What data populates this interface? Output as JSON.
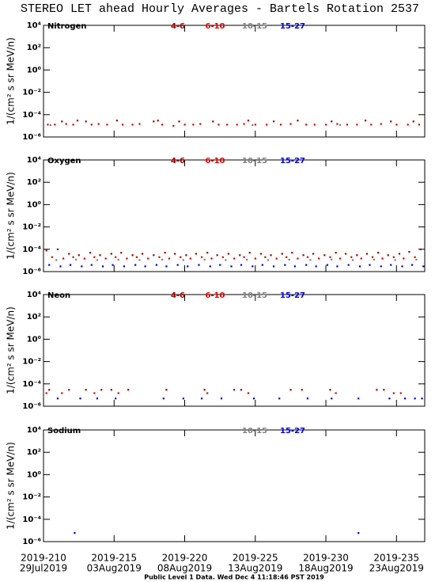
{
  "title": "STEREO LET ahead Hourly Averages - Bartels Rotation 2537",
  "footer": "Public Level 1 Data. Wed Dec  4 11:18:46 PST 2019",
  "chart_data": [
    {
      "type": "scatter",
      "title": "Nitrogen",
      "ylabel": "1/(cm² s sr MeV/n)",
      "log_y": true,
      "xlim": [
        210,
        237
      ],
      "ylim": [
        1e-06,
        10000
      ],
      "yticks": [
        {
          "value": 10000,
          "label": "10⁴"
        },
        {
          "value": 100,
          "label": "10²"
        },
        {
          "value": 1,
          "label": "10⁰"
        },
        {
          "value": 0.01,
          "label": "10⁻²"
        },
        {
          "value": 0.0001,
          "label": "10⁻⁴"
        },
        {
          "value": 1e-06,
          "label": "10⁻⁶"
        }
      ],
      "series": [
        {
          "name": "4-6",
          "color": "#a00000",
          "x": [
            211.3,
            212.4,
            213.0,
            215.2,
            217.8,
            218.1,
            219.6,
            222.0,
            224.5,
            226.3,
            228.0,
            230.4,
            232.8,
            234.6,
            236.2
          ],
          "values": [
            2.5e-05,
            3e-05,
            2.5e-05,
            3e-05,
            2.5e-05,
            3e-05,
            2.5e-05,
            2.5e-05,
            3e-05,
            2.5e-05,
            3e-05,
            2.5e-05,
            3e-05,
            2.5e-05,
            2.5e-05
          ]
        },
        {
          "name": "6-10",
          "color": "#e00000",
          "x": [
            210.3,
            210.8,
            211.6,
            212.1,
            213.4,
            213.9,
            214.5,
            215.6,
            216.3,
            216.8,
            218.4,
            219.2,
            220.0,
            220.6,
            221.1,
            222.4,
            223.0,
            223.7,
            224.2,
            225.0,
            225.8,
            226.8,
            227.5,
            228.6,
            229.2,
            230.0,
            230.8,
            231.5,
            232.2,
            233.2,
            233.9,
            235.0,
            235.8,
            236.6
          ],
          "values": [
            1.3e-05,
            1.3e-05,
            1.5e-05,
            1.3e-05,
            1.3e-05,
            1.5e-05,
            1.3e-05,
            1.3e-05,
            1.3e-05,
            1.5e-05,
            1.3e-05,
            1e-05,
            1.3e-05,
            1.3e-05,
            1.5e-05,
            1.3e-05,
            1.3e-05,
            1.3e-05,
            1.5e-05,
            1.3e-05,
            1.3e-05,
            1.3e-05,
            1.5e-05,
            1.3e-05,
            1.3e-05,
            1.3e-05,
            1.5e-05,
            1.3e-05,
            1.3e-05,
            1.3e-05,
            1.5e-05,
            1.3e-05,
            1.3e-05,
            1.3e-05
          ]
        },
        {
          "name": "10-15",
          "color": "#808080",
          "x": [
            210.5,
            224.8,
            231.0
          ],
          "values": [
            1.2e-05,
            1.2e-05,
            1.2e-05
          ]
        },
        {
          "name": "15-27",
          "color": "#0000e0",
          "x": [],
          "values": []
        }
      ]
    },
    {
      "type": "scatter",
      "title": "Oxygen",
      "ylabel": "1/(cm² s sr MeV/n)",
      "log_y": true,
      "xlim": [
        210,
        237
      ],
      "ylim": [
        1e-06,
        10000
      ],
      "yticks": [
        {
          "value": 10000,
          "label": "10⁴"
        },
        {
          "value": 100,
          "label": "10²"
        },
        {
          "value": 1,
          "label": "10⁰"
        },
        {
          "value": 0.01,
          "label": "10⁻²"
        },
        {
          "value": 0.0001,
          "label": "10⁻⁴"
        },
        {
          "value": 1e-06,
          "label": "10⁻⁶"
        }
      ],
      "series": [
        {
          "name": "4-6",
          "color": "#a00000",
          "x": [
            210.2,
            211.0,
            211.8,
            212.5,
            213.3,
            214.0,
            214.8,
            215.5,
            216.3,
            217.0,
            217.8,
            218.6,
            219.3,
            220.1,
            220.8,
            221.6,
            222.3,
            223.1,
            223.9,
            224.6,
            225.4,
            226.1,
            226.9,
            227.6,
            228.4,
            229.1,
            229.9,
            230.7,
            231.4,
            232.2,
            232.9,
            233.7,
            234.4,
            235.2,
            235.9,
            236.7
          ],
          "values": [
            8e-05,
            0.0001,
            4e-05,
            3e-05,
            5e-05,
            3e-05,
            4e-05,
            5e-05,
            3e-05,
            4e-05,
            3e-05,
            5e-05,
            4e-05,
            3e-05,
            4e-05,
            5e-05,
            3e-05,
            4e-05,
            3e-05,
            5e-05,
            4e-05,
            3e-05,
            4e-05,
            5e-05,
            3e-05,
            4e-05,
            3e-05,
            5e-05,
            4e-05,
            3e-05,
            4e-05,
            5e-05,
            3e-05,
            4e-05,
            6e-05,
            0.0001
          ]
        },
        {
          "name": "6-10",
          "color": "#e00000",
          "x": [
            210.6,
            211.4,
            212.1,
            212.9,
            213.6,
            214.4,
            215.1,
            215.9,
            216.6,
            217.4,
            218.2,
            218.9,
            219.7,
            220.4,
            221.2,
            221.9,
            222.7,
            223.5,
            224.2,
            225.0,
            225.7,
            226.5,
            227.2,
            228.0,
            228.7,
            229.5,
            230.3,
            231.0,
            231.8,
            232.5,
            233.3,
            234.0,
            234.8,
            235.5,
            236.3
          ],
          "values": [
            2e-05,
            1.5e-05,
            2e-05,
            1.5e-05,
            2e-05,
            1.5e-05,
            2e-05,
            1.5e-05,
            2e-05,
            1.5e-05,
            2e-05,
            1.5e-05,
            2e-05,
            1.5e-05,
            2e-05,
            1.5e-05,
            2e-05,
            1.5e-05,
            2e-05,
            1.5e-05,
            2e-05,
            1.5e-05,
            2e-05,
            1.5e-05,
            2e-05,
            1.5e-05,
            2e-05,
            1.5e-05,
            2e-05,
            1.5e-05,
            2e-05,
            1.5e-05,
            2e-05,
            1.5e-05,
            2e-05
          ]
        },
        {
          "name": "10-15",
          "color": "#808080",
          "x": [
            210.9,
            212.3,
            213.8,
            215.3,
            216.8,
            218.4,
            219.9,
            221.4,
            222.9,
            224.4,
            225.9,
            227.4,
            228.9,
            230.4,
            231.9,
            233.4,
            234.9,
            236.4
          ],
          "values": [
            1.1e-05,
            1.2e-05,
            1.1e-05,
            1.2e-05,
            1.1e-05,
            1.2e-05,
            1.1e-05,
            1.2e-05,
            1.1e-05,
            1.2e-05,
            1.1e-05,
            1.2e-05,
            1.1e-05,
            1.2e-05,
            1.1e-05,
            1.2e-05,
            1.1e-05,
            1.2e-05
          ]
        },
        {
          "name": "15-27",
          "color": "#0000e0",
          "x": [
            210.4,
            211.2,
            211.9,
            212.7,
            213.4,
            214.2,
            214.9,
            215.7,
            216.5,
            217.2,
            218.0,
            218.7,
            219.5,
            220.2,
            221.0,
            221.8,
            222.5,
            223.3,
            224.0,
            224.8,
            225.5,
            226.3,
            227.1,
            227.8,
            228.6,
            229.3,
            230.1,
            230.8,
            231.6,
            232.4,
            233.1,
            233.9,
            234.6,
            235.4,
            236.1,
            236.9
          ],
          "values": [
            4e-06,
            3e-06,
            4e-06,
            3e-06,
            4e-06,
            3e-06,
            4e-06,
            3e-06,
            4e-06,
            3e-06,
            4e-06,
            3e-06,
            4e-06,
            3e-06,
            4e-06,
            3e-06,
            4e-06,
            3e-06,
            4e-06,
            3e-06,
            4e-06,
            3e-06,
            4e-06,
            3e-06,
            4e-06,
            3e-06,
            4e-06,
            3e-06,
            4e-06,
            3e-06,
            4e-06,
            3e-06,
            4e-06,
            3e-06,
            4e-06,
            3e-06
          ]
        }
      ]
    },
    {
      "type": "scatter",
      "title": "Neon",
      "ylabel": "1/(cm² s sr MeV/n)",
      "log_y": true,
      "xlim": [
        210,
        237
      ],
      "ylim": [
        1e-06,
        10000
      ],
      "yticks": [
        {
          "value": 10000,
          "label": "10⁴"
        },
        {
          "value": 100,
          "label": "10²"
        },
        {
          "value": 1,
          "label": "10⁰"
        },
        {
          "value": 0.01,
          "label": "10⁻²"
        },
        {
          "value": 0.0001,
          "label": "10⁻⁴"
        },
        {
          "value": 1e-06,
          "label": "10⁻⁶"
        }
      ],
      "series": [
        {
          "name": "4-6",
          "color": "#a00000",
          "x": [
            210.4,
            211.8,
            213.0,
            214.1,
            214.8,
            216.0,
            218.7,
            221.4,
            223.5,
            224.0,
            227.5,
            228.3,
            230.3,
            233.6,
            234.1
          ],
          "values": [
            3e-05,
            3e-05,
            3e-05,
            3e-05,
            3e-05,
            3e-05,
            3e-05,
            3e-05,
            3e-05,
            3e-05,
            3e-05,
            3e-05,
            3e-05,
            3e-05,
            3e-05
          ]
        },
        {
          "name": "6-10",
          "color": "#e00000",
          "x": [
            210.2,
            211.3,
            213.6,
            215.3,
            221.6,
            224.5,
            230.7,
            234.8,
            235.3
          ],
          "values": [
            1.5e-05,
            1.5e-05,
            1.5e-05,
            1.5e-05,
            1.5e-05,
            1.5e-05,
            1.5e-05,
            1.5e-05,
            1.5e-05
          ]
        },
        {
          "name": "10-15",
          "color": "#808080",
          "x": [],
          "values": []
        },
        {
          "name": "15-27",
          "color": "#0000e0",
          "x": [
            211.0,
            212.6,
            213.8,
            215.1,
            218.5,
            219.9,
            221.2,
            222.6,
            224.9,
            226.7,
            228.7,
            230.4,
            232.3,
            234.5,
            235.6,
            236.3,
            236.8
          ],
          "values": [
            5e-06,
            5e-06,
            5e-06,
            5e-06,
            5e-06,
            5e-06,
            5e-06,
            5e-06,
            5e-06,
            5e-06,
            5e-06,
            5e-06,
            5e-06,
            5e-06,
            5e-06,
            5e-06,
            5e-06
          ]
        }
      ]
    },
    {
      "type": "scatter",
      "title": "Sodium",
      "ylabel": "1/(cm² s sr MeV/n)",
      "log_y": true,
      "xlim": [
        210,
        237
      ],
      "ylim": [
        1e-06,
        10000
      ],
      "yticks": [
        {
          "value": 10000,
          "label": "10⁴"
        },
        {
          "value": 100,
          "label": "10²"
        },
        {
          "value": 1,
          "label": "10⁰"
        },
        {
          "value": 0.01,
          "label": "10⁻²"
        },
        {
          "value": 0.0001,
          "label": "10⁻⁴"
        },
        {
          "value": 1e-06,
          "label": "10⁻⁶"
        }
      ],
      "xticks": [
        {
          "value": 210,
          "label": "2019-210"
        },
        {
          "value": 215,
          "label": "2019-215"
        },
        {
          "value": 220,
          "label": "2019-220"
        },
        {
          "value": 225,
          "label": "2019-225"
        },
        {
          "value": 230,
          "label": "2019-230"
        },
        {
          "value": 235,
          "label": "2019-235"
        }
      ],
      "xtick_dates": [
        "29Jul2019",
        "03Aug2019",
        "08Aug2019",
        "13Aug2019",
        "18Aug2019",
        "23Aug2019"
      ],
      "series": [
        {
          "name": "10-15",
          "color": "#808080",
          "x": [],
          "values": []
        },
        {
          "name": "15-27",
          "color": "#0000e0",
          "x": [
            212.2,
            232.3
          ],
          "values": [
            6e-06,
            6e-06
          ]
        }
      ]
    }
  ]
}
